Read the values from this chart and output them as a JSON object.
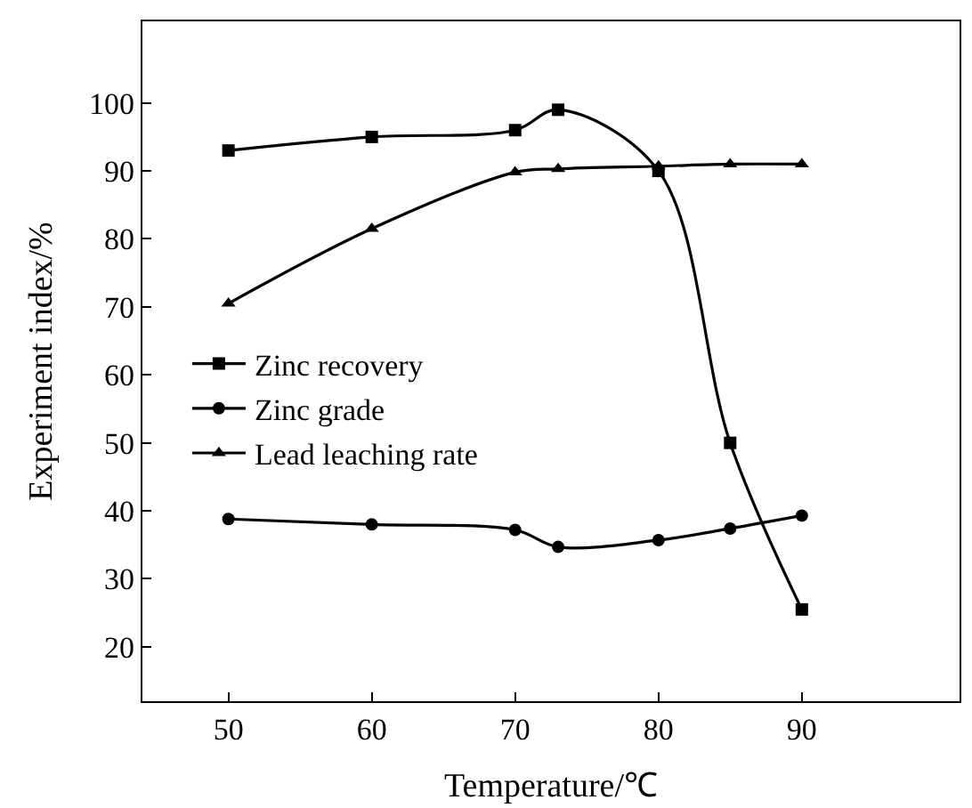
{
  "chart_data": {
    "type": "line",
    "xlabel": "Temperature/℃",
    "ylabel": "Experiment index/%",
    "x": [
      50,
      60,
      70,
      73,
      80,
      85,
      90
    ],
    "series": [
      {
        "name": "Zinc recovery",
        "color": "#000000",
        "marker": "square",
        "values": [
          93,
          95,
          96,
          99,
          90,
          50,
          25.5
        ]
      },
      {
        "name": "Zinc grade",
        "color": "#000000",
        "marker": "circle",
        "values": [
          38.8,
          38,
          37.2,
          34.7,
          35.7,
          37.4,
          39.3
        ]
      },
      {
        "name": "Lead leaching rate",
        "color": "#000000",
        "marker": "triangle",
        "values": [
          70.5,
          81.5,
          89.8,
          90.3,
          90.7,
          91,
          91
        ]
      }
    ],
    "xlim": [
      44,
      101
    ],
    "ylim": [
      12,
      112
    ],
    "xticks": [
      50,
      60,
      70,
      80,
      90
    ],
    "yticks": [
      20,
      30,
      40,
      50,
      60,
      70,
      80,
      90,
      100
    ],
    "legend": "left",
    "line_style": "solid"
  }
}
